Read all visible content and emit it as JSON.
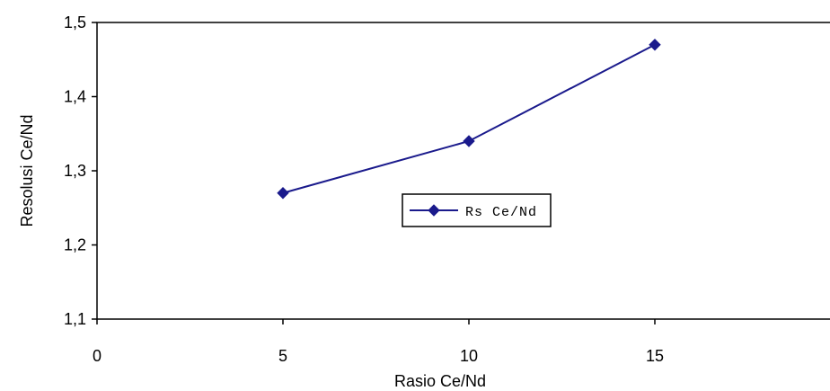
{
  "chart_data": {
    "type": "line",
    "x": [
      5,
      10,
      15
    ],
    "series": [
      {
        "name": "Rs Ce/Nd",
        "values": [
          1.27,
          1.34,
          1.47
        ]
      }
    ],
    "xlabel": "Rasio Ce/Nd",
    "ylabel": "Resolusi Ce/Nd",
    "xlim": [
      0,
      20
    ],
    "ylim": [
      1.1,
      1.5
    ],
    "x_ticks": [
      0,
      5,
      10,
      15
    ],
    "x_tick_labels": [
      "0",
      "5",
      "10",
      "15"
    ],
    "y_ticks": [
      1.1,
      1.2,
      1.3,
      1.4,
      1.5
    ],
    "y_tick_labels": [
      "1,1",
      "1,2",
      "1,3",
      "1,4",
      "1,5"
    ],
    "grid": false,
    "legend_position": "center",
    "series_color": "#1a1a8c",
    "marker": "diamond"
  }
}
